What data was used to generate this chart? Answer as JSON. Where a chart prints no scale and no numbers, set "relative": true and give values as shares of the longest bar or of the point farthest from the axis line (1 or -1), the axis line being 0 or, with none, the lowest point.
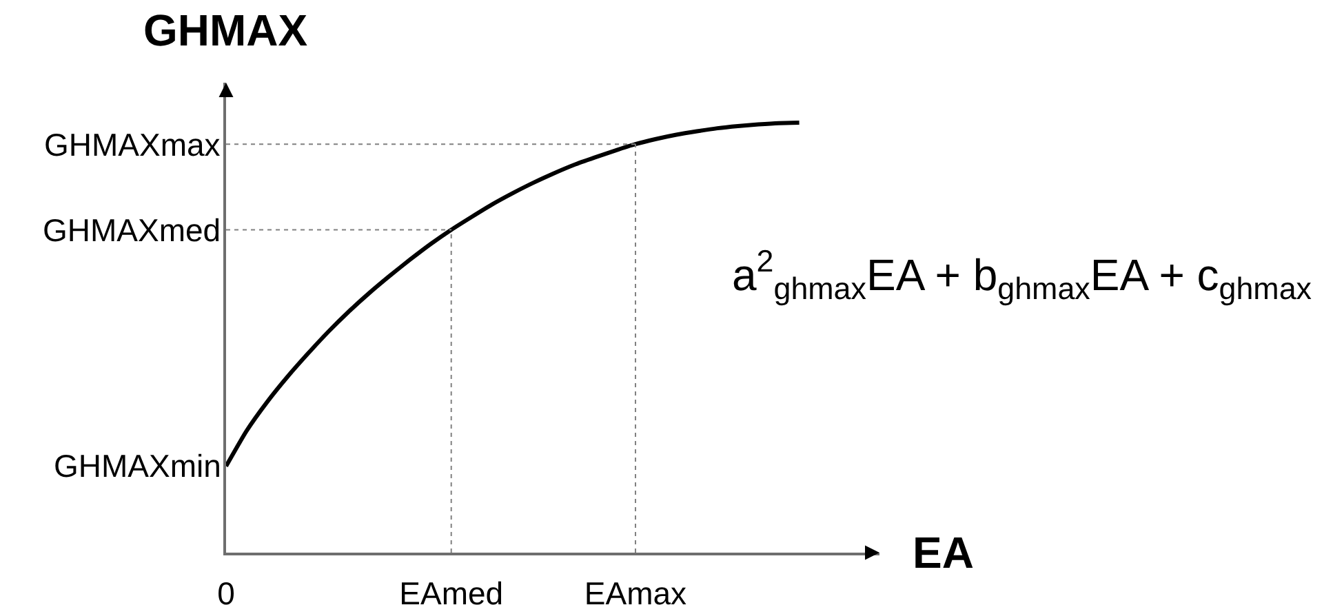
{
  "chart_data": {
    "type": "line",
    "relative": true,
    "xlabel": "EA",
    "ylabel": "GHMAX",
    "categories": [
      "0",
      null,
      null,
      null,
      null,
      null,
      null,
      null,
      null,
      null,
      null,
      "EAmed",
      null,
      null,
      null,
      null,
      null,
      null,
      null,
      null,
      "EAmax",
      null,
      null,
      null,
      null,
      null,
      null,
      null,
      null
    ],
    "series": [
      {
        "color": "#000000",
        "values": [
          0.201,
          0.283,
          0.35,
          0.409,
          0.463,
          0.514,
          0.561,
          0.604,
          0.644,
          0.682,
          0.718,
          0.751,
          0.781,
          0.81,
          0.836,
          0.86,
          0.882,
          0.902,
          0.919,
          0.935,
          0.95,
          0.962,
          0.972,
          0.98,
          0.987,
          0.992,
          0.996,
          0.999,
          1.0
        ]
      }
    ],
    "ref_lines": [
      {
        "axis": "x",
        "value": "EAmed",
        "line_style": "dotted",
        "color": "#808080"
      },
      {
        "axis": "x",
        "value": "EAmax",
        "line_style": "dotted",
        "color": "#808080"
      },
      {
        "axis": "y",
        "value": 0.751,
        "label": "GHMAXmed",
        "line_style": "dotted",
        "color": "#808080"
      },
      {
        "axis": "y",
        "value": 0.95,
        "label": "GHMAXmax",
        "line_style": "dotted",
        "color": "#808080"
      }
    ],
    "annotations": [
      {
        "text": "GHMAXmin",
        "x": "0",
        "y": 0.201
      },
      "a$^{2}$$_{ghmax}$EA + b$_{ghmax}$EA + c$_{ghmax}$"
    ]
  }
}
